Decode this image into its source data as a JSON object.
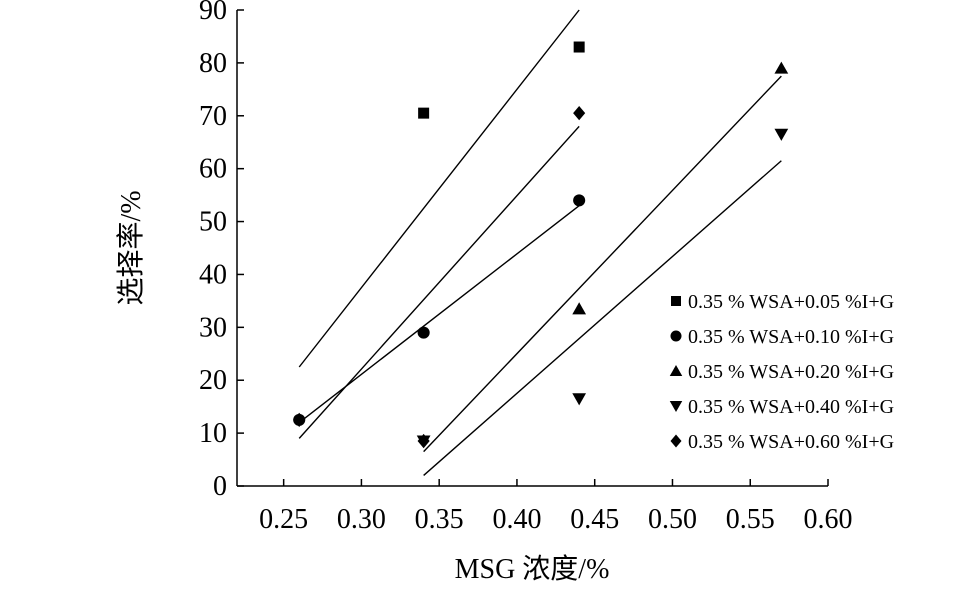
{
  "chart_data": {
    "type": "scatter",
    "xlabel": "MSG 浓度/%",
    "ylabel": "选择率/%",
    "xlim": [
      0.22,
      0.6
    ],
    "ylim": [
      0,
      90
    ],
    "x_ticks": [
      0.25,
      0.3,
      0.35,
      0.4,
      0.45,
      0.5,
      0.55,
      0.6
    ],
    "x_tick_labels": [
      "0.25",
      "0.30",
      "0.35",
      "0.40",
      "0.45",
      "0.50",
      "0.55",
      "0.60"
    ],
    "y_ticks": [
      0,
      10,
      20,
      30,
      40,
      50,
      60,
      70,
      80,
      90
    ],
    "y_tick_labels": [
      "0",
      "10",
      "20",
      "30",
      "40",
      "50",
      "60",
      "70",
      "80",
      "90"
    ],
    "grid": false,
    "legend_position": "right",
    "series": [
      {
        "name": "0.35 % WSA+0.05 %I+G",
        "marker": "square",
        "points": [
          {
            "x": 0.34,
            "y": 70.5
          },
          {
            "x": 0.44,
            "y": 83
          }
        ],
        "fit": {
          "x0": 0.26,
          "y0": 22.5,
          "x1": 0.44,
          "y1": 90
        }
      },
      {
        "name": "0.35 % WSA+0.10 %I+G",
        "marker": "circle",
        "points": [
          {
            "x": 0.26,
            "y": 12.5
          },
          {
            "x": 0.34,
            "y": 29
          },
          {
            "x": 0.44,
            "y": 54
          }
        ],
        "fit": {
          "x0": 0.26,
          "y0": 12,
          "x1": 0.44,
          "y1": 53
        }
      },
      {
        "name": "0.35 % WSA+0.20 %I+G",
        "marker": "triangle-up",
        "points": [
          {
            "x": 0.44,
            "y": 33.5
          },
          {
            "x": 0.57,
            "y": 79
          }
        ],
        "fit": {
          "x0": 0.34,
          "y0": 6.5,
          "x1": 0.57,
          "y1": 77.5
        }
      },
      {
        "name": "0.35 % WSA+0.40 %I+G",
        "marker": "triangle-down",
        "points": [
          {
            "x": 0.34,
            "y": 8.5
          },
          {
            "x": 0.44,
            "y": 16.5
          },
          {
            "x": 0.57,
            "y": 66.5
          }
        ],
        "fit": {
          "x0": 0.34,
          "y0": 2,
          "x1": 0.57,
          "y1": 61.5
        }
      },
      {
        "name": "0.35 % WSA+0.60 %I+G",
        "marker": "diamond",
        "points": [
          {
            "x": 0.26,
            "y": 12.5
          },
          {
            "x": 0.34,
            "y": 8.5
          },
          {
            "x": 0.44,
            "y": 70.5
          }
        ],
        "fit": {
          "x0": 0.26,
          "y0": 9,
          "x1": 0.44,
          "y1": 68
        }
      }
    ]
  }
}
